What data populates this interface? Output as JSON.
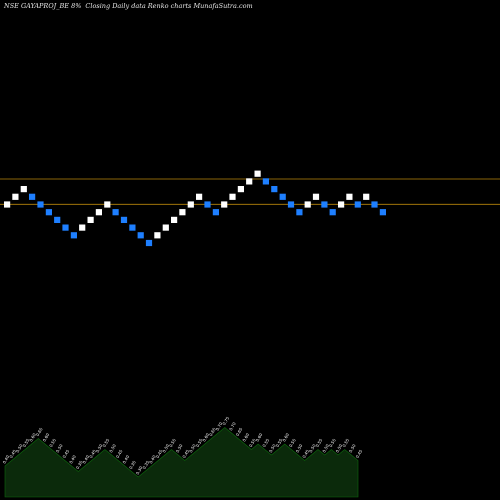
{
  "header": {
    "symbol": "NSE GAYAPROJ_BE 8%",
    "description": "Closing Daily data  Renko  charts MunafaSutra.com"
  },
  "colors": {
    "background": "#000000",
    "up_brick": "#ffffff",
    "down_brick": "#1e7fff",
    "reference_line": "#b8860b",
    "volume_fill": "#0b2a0b",
    "volume_line": "#0c6a0c"
  },
  "chart_data": {
    "type": "renko",
    "title": "",
    "reference_lines": [
      0.855,
      0.6
    ],
    "bricks": [
      {
        "dir": "up",
        "level": 0
      },
      {
        "dir": "up",
        "level": 1
      },
      {
        "dir": "up",
        "level": 2
      },
      {
        "dir": "down",
        "level": 1
      },
      {
        "dir": "down",
        "level": 0
      },
      {
        "dir": "down",
        "level": -1
      },
      {
        "dir": "down",
        "level": -2
      },
      {
        "dir": "down",
        "level": -3
      },
      {
        "dir": "down",
        "level": -4
      },
      {
        "dir": "up",
        "level": -3
      },
      {
        "dir": "up",
        "level": -2
      },
      {
        "dir": "up",
        "level": -1
      },
      {
        "dir": "up",
        "level": 0
      },
      {
        "dir": "down",
        "level": -1
      },
      {
        "dir": "down",
        "level": -2
      },
      {
        "dir": "down",
        "level": -3
      },
      {
        "dir": "down",
        "level": -4
      },
      {
        "dir": "down",
        "level": -5
      },
      {
        "dir": "up",
        "level": -4
      },
      {
        "dir": "up",
        "level": -3
      },
      {
        "dir": "up",
        "level": -2
      },
      {
        "dir": "up",
        "level": -1
      },
      {
        "dir": "up",
        "level": 0
      },
      {
        "dir": "up",
        "level": 1
      },
      {
        "dir": "down",
        "level": 0
      },
      {
        "dir": "down",
        "level": -1
      },
      {
        "dir": "up",
        "level": 0
      },
      {
        "dir": "up",
        "level": 1
      },
      {
        "dir": "up",
        "level": 2
      },
      {
        "dir": "up",
        "level": 3
      },
      {
        "dir": "up",
        "level": 4
      },
      {
        "dir": "down",
        "level": 3
      },
      {
        "dir": "down",
        "level": 2
      },
      {
        "dir": "down",
        "level": 1
      },
      {
        "dir": "down",
        "level": 0
      },
      {
        "dir": "down",
        "level": -1
      },
      {
        "dir": "up",
        "level": 0
      },
      {
        "dir": "up",
        "level": 1
      },
      {
        "dir": "down",
        "level": 0
      },
      {
        "dir": "down",
        "level": -1
      },
      {
        "dir": "up",
        "level": 0
      },
      {
        "dir": "up",
        "level": 1
      },
      {
        "dir": "down",
        "level": 0
      },
      {
        "dir": "up",
        "level": 1
      },
      {
        "dir": "down",
        "level": 0
      },
      {
        "dir": "down",
        "level": -1
      }
    ],
    "volume_labels": [
      "0.40",
      "0.45",
      "0.50",
      "0.55",
      "0.60",
      "0.65",
      "0.60",
      "0.55",
      "0.50",
      "0.45",
      "0.40",
      "0.35",
      "0.40",
      "0.45",
      "0.50",
      "0.55",
      "0.50",
      "0.45",
      "0.40",
      "0.35",
      "0.30",
      "0.35",
      "0.40",
      "0.45",
      "0.50",
      "0.55",
      "0.50",
      "0.45",
      "0.50",
      "0.55",
      "0.60",
      "0.65",
      "0.70",
      "0.75",
      "0.70",
      "0.65",
      "0.60",
      "0.55",
      "0.60",
      "0.55",
      "0.50",
      "0.55",
      "0.60",
      "0.55",
      "0.50",
      "0.45",
      "0.50",
      "0.55",
      "0.50",
      "0.55",
      "0.50",
      "0.55",
      "0.50",
      "0.45"
    ]
  }
}
